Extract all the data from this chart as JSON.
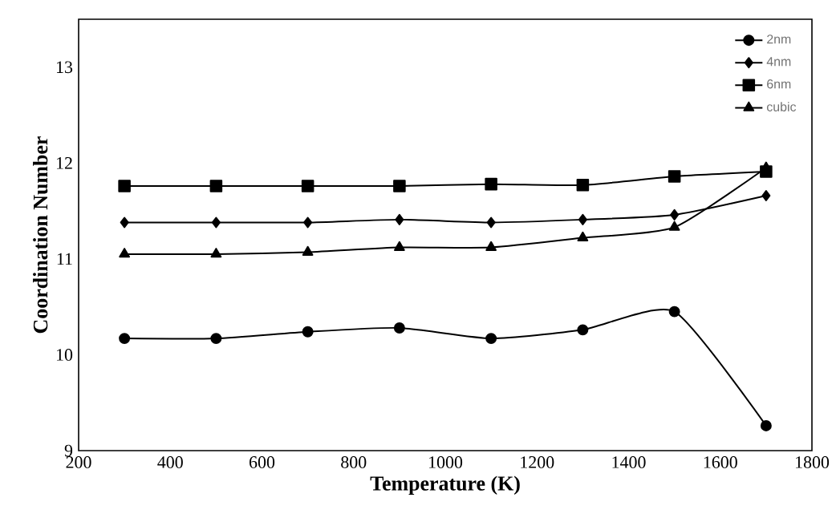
{
  "chart_data": {
    "type": "line",
    "xlabel": "Temperature (K)",
    "ylabel": "Coordination Number",
    "x": [
      300,
      500,
      700,
      900,
      1100,
      1300,
      1500,
      1700
    ],
    "series": [
      {
        "name": "2nm",
        "color": "#000000",
        "marker": "circle",
        "values": [
          10.17,
          10.17,
          10.24,
          10.28,
          10.17,
          10.26,
          10.45,
          9.26
        ]
      },
      {
        "name": "4nm",
        "color": "#000000",
        "marker": "diamond",
        "values": [
          11.38,
          11.38,
          11.38,
          11.41,
          11.38,
          11.41,
          11.46,
          11.66
        ]
      },
      {
        "name": "6nm",
        "color": "#000000",
        "marker": "square",
        "values": [
          11.76,
          11.76,
          11.76,
          11.76,
          11.78,
          11.77,
          11.86,
          11.91
        ]
      },
      {
        "name": "cubic",
        "color": "#000000",
        "marker": "triangle",
        "values": [
          11.05,
          11.05,
          11.07,
          11.12,
          11.12,
          11.22,
          11.33,
          11.95
        ]
      }
    ],
    "xlim": [
      200,
      1800
    ],
    "xticks": [
      200,
      400,
      600,
      800,
      1000,
      1200,
      1400,
      1600,
      1800
    ],
    "ylim": [
      9,
      13.5
    ],
    "yticks": [
      9,
      10,
      11,
      12,
      13
    ],
    "grid": false,
    "legend": "top right",
    "line_style": "solid"
  }
}
